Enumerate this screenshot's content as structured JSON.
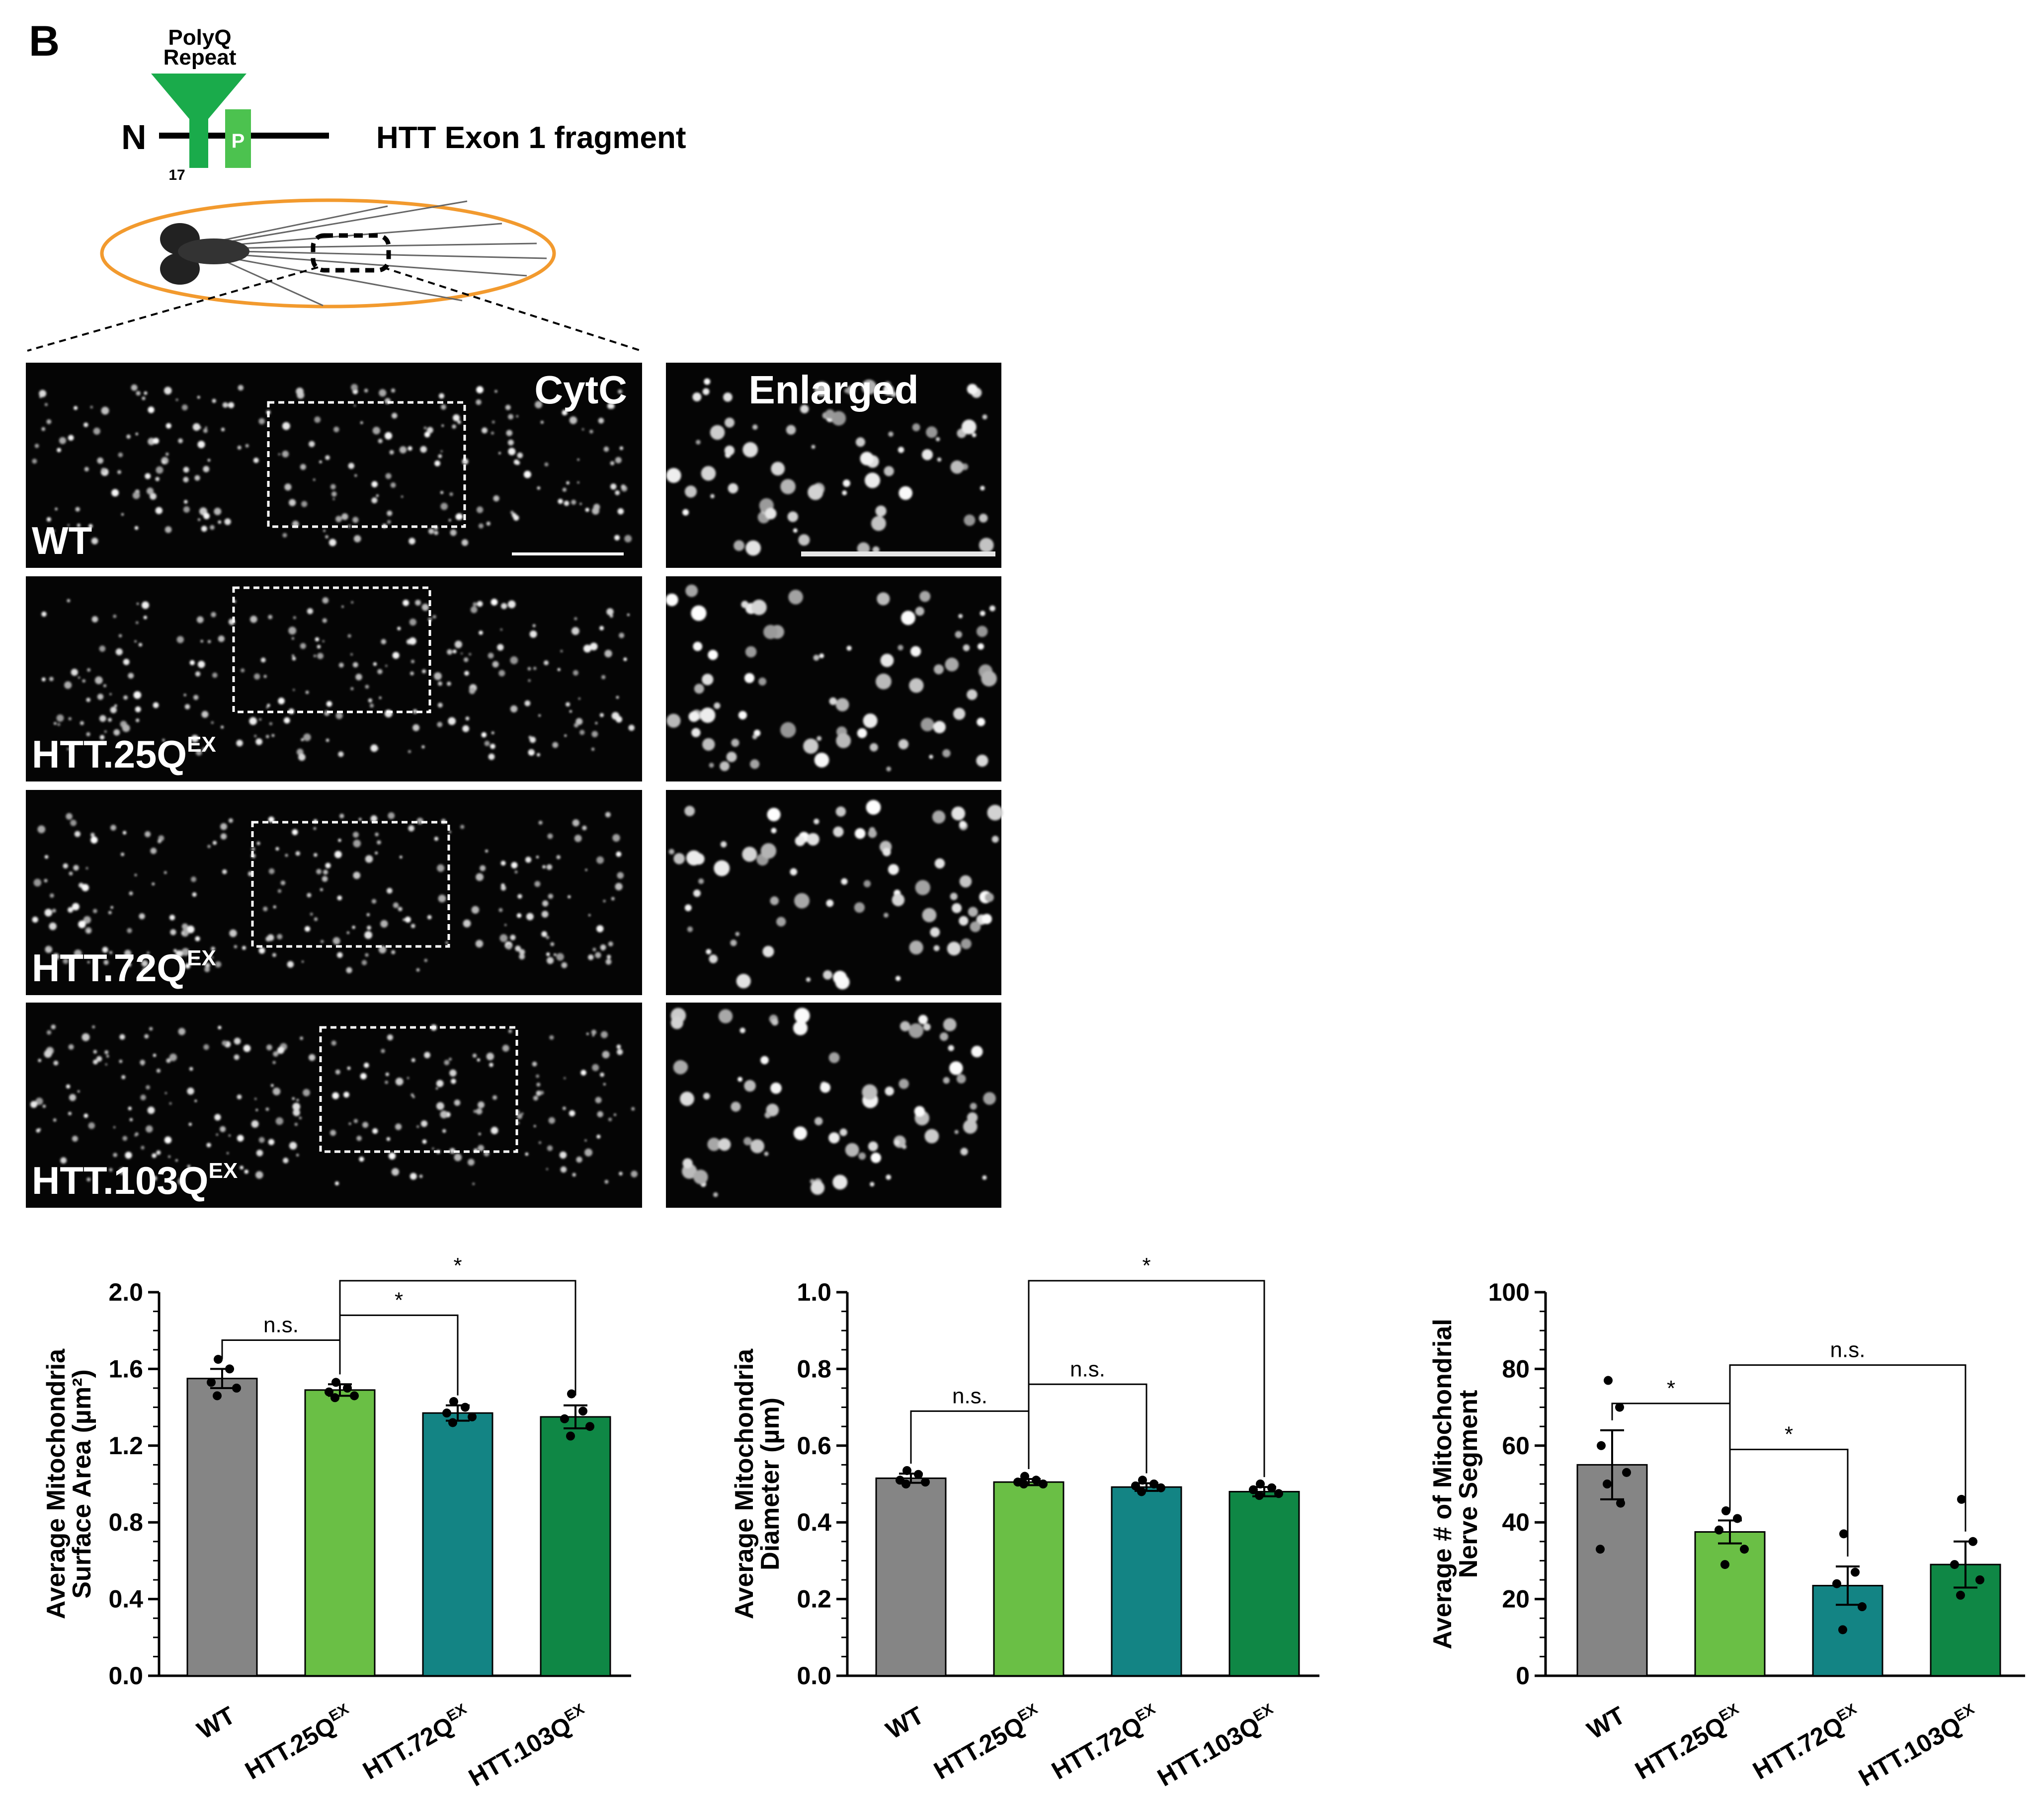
{
  "panel_letter": "B",
  "schematic": {
    "polyq_label_line1": "PolyQ",
    "polyq_label_line2": "Repeat",
    "n_terminus": "N",
    "proline_label": "P",
    "position_17": "17",
    "construct_label": "HTT Exon 1 fragment"
  },
  "micrographs": {
    "stain_label": "CytC",
    "enlarged_label": "Enlarged",
    "rows": [
      {
        "base": "WT",
        "sup": ""
      },
      {
        "base": "HTT.25Q",
        "sup": "EX"
      },
      {
        "base": "HTT.72Q",
        "sup": "EX"
      },
      {
        "base": "HTT.103Q",
        "sup": "EX"
      }
    ]
  },
  "colors": {
    "wt": "#858585",
    "q25": "#6abf45",
    "q72": "#138484",
    "q103": "#0f8745",
    "gfp": "#1aab4b",
    "embryo_outline": "#f29a2e"
  },
  "chart_data": [
    {
      "type": "bar",
      "ylabel_line1": "Average Mitochondria",
      "ylabel_line2": "Surface Area (µm²)",
      "ylim": [
        0,
        2.0
      ],
      "yticks": [
        "0.0",
        "0.4",
        "0.8",
        "1.2",
        "1.6",
        "2.0"
      ],
      "categories": [
        {
          "base": "WT",
          "sup": ""
        },
        {
          "base": "HTT.25Q",
          "sup": "EX"
        },
        {
          "base": "HTT.72Q",
          "sup": "EX"
        },
        {
          "base": "HTT.103Q",
          "sup": "EX"
        }
      ],
      "values": [
        1.55,
        1.49,
        1.37,
        1.35
      ],
      "errors": [
        0.05,
        0.03,
        0.04,
        0.06
      ],
      "points": [
        [
          1.65,
          1.6,
          1.53,
          1.5,
          1.46
        ],
        [
          1.53,
          1.5,
          1.48,
          1.46,
          1.45
        ],
        [
          1.43,
          1.4,
          1.37,
          1.35,
          1.32
        ],
        [
          1.47,
          1.38,
          1.34,
          1.3,
          1.25
        ]
      ],
      "comparisons": [
        {
          "from": 0,
          "to": 1,
          "label": "n.s.",
          "level": 1.75
        },
        {
          "from": 1,
          "to": 2,
          "label": "*",
          "level": 1.88
        },
        {
          "from": 1,
          "to": 3,
          "label": "*",
          "level": 2.06
        }
      ]
    },
    {
      "type": "bar",
      "ylabel_line1": "Average Mitochondria",
      "ylabel_line2": "Diameter (µm)",
      "ylim": [
        0,
        1.0
      ],
      "yticks": [
        "0.0",
        "0.2",
        "0.4",
        "0.6",
        "0.8",
        "1.0"
      ],
      "categories": [
        {
          "base": "WT",
          "sup": ""
        },
        {
          "base": "HTT.25Q",
          "sup": "EX"
        },
        {
          "base": "HTT.72Q",
          "sup": "EX"
        },
        {
          "base": "HTT.103Q",
          "sup": "EX"
        }
      ],
      "values": [
        0.515,
        0.505,
        0.492,
        0.48
      ],
      "errors": [
        0.012,
        0.008,
        0.01,
        0.012
      ],
      "points": [
        [
          0.535,
          0.525,
          0.51,
          0.505,
          0.5
        ],
        [
          0.52,
          0.51,
          0.505,
          0.5,
          0.5
        ],
        [
          0.51,
          0.5,
          0.495,
          0.49,
          0.48
        ],
        [
          0.5,
          0.49,
          0.485,
          0.475,
          0.47
        ]
      ],
      "comparisons": [
        {
          "from": 0,
          "to": 1,
          "label": "n.s.",
          "level": 0.69
        },
        {
          "from": 1,
          "to": 2,
          "label": "n.s.",
          "level": 0.76
        },
        {
          "from": 1,
          "to": 3,
          "label": "*",
          "level": 1.03
        }
      ]
    },
    {
      "type": "bar",
      "ylabel_line1": "Average # of Mitochondrial",
      "ylabel_line2": "Nerve Segment",
      "ylim": [
        0,
        100
      ],
      "yticks": [
        "0",
        "20",
        "40",
        "60",
        "80",
        "100"
      ],
      "categories": [
        {
          "base": "WT",
          "sup": ""
        },
        {
          "base": "HTT.25Q",
          "sup": "EX"
        },
        {
          "base": "HTT.72Q",
          "sup": "EX"
        },
        {
          "base": "HTT.103Q",
          "sup": "EX"
        }
      ],
      "values": [
        55,
        37.5,
        23.5,
        29
      ],
      "errors": [
        9,
        3,
        5,
        6
      ],
      "points": [
        [
          77,
          70,
          60,
          53,
          50,
          45,
          33
        ],
        [
          43,
          41,
          38,
          33,
          29
        ],
        [
          37,
          27,
          24,
          18,
          12
        ],
        [
          46,
          35,
          29,
          25,
          21
        ]
      ],
      "comparisons": [
        {
          "from": 0,
          "to": 1,
          "label": "*",
          "level": 71
        },
        {
          "from": 1,
          "to": 2,
          "label": "*",
          "level": 59
        },
        {
          "from": 1,
          "to": 3,
          "label": "n.s.",
          "level": 81
        }
      ]
    }
  ]
}
